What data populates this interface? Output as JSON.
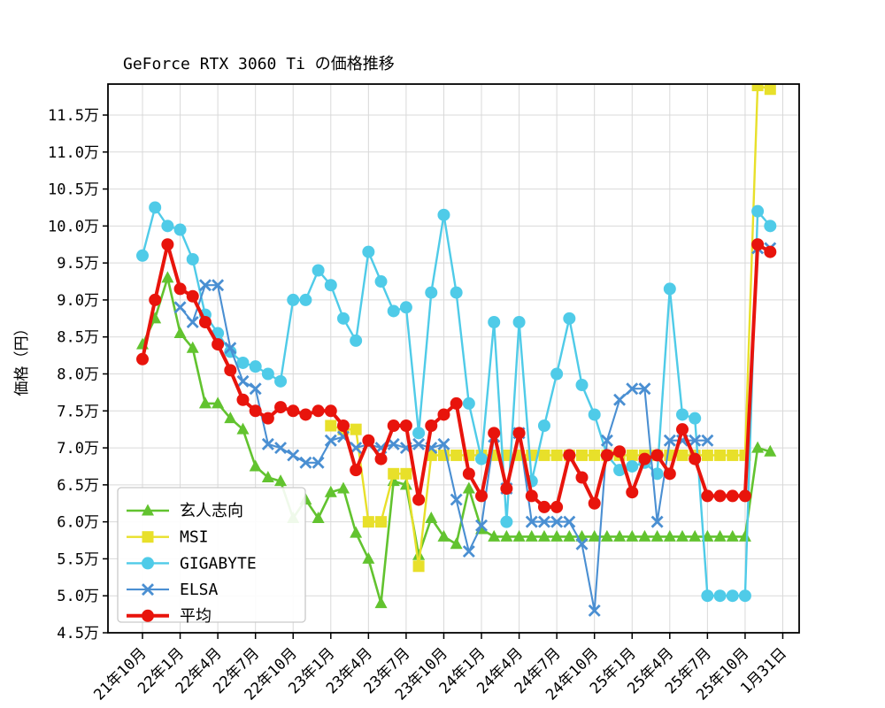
{
  "chart_data": {
    "type": "line",
    "title": "GeForce RTX 3060 Ti の価格推移",
    "ylabel": "価格（円）",
    "unit": "万円",
    "grid": true,
    "legend_position": "lower left",
    "ylim": [
      4.5,
      11.92
    ],
    "y_tick_values": [
      4.5,
      5.0,
      5.5,
      6.0,
      6.5,
      7.0,
      7.5,
      8.0,
      8.5,
      9.0,
      9.5,
      10.0,
      10.5,
      11.0,
      11.5
    ],
    "y_tick_labels": [
      "4.5万",
      "5.0万",
      "5.5万",
      "6.0万",
      "6.5万",
      "7.0万",
      "7.5万",
      "8.0万",
      "8.5万",
      "9.0万",
      "9.5万",
      "10.0万",
      "10.5万",
      "11.0万",
      "11.5万"
    ],
    "x_tick_labels": [
      "21年10月",
      "22年1月",
      "22年4月",
      "22年7月",
      "22年10月",
      "23年1月",
      "23年4月",
      "23年7月",
      "23年10月",
      "24年1月",
      "24年4月",
      "24年7月",
      "24年10月",
      "25年1月",
      "25年4月",
      "25年7月",
      "25年10月",
      "1月31日"
    ],
    "x_tick_month_index": [
      0,
      3,
      6,
      9,
      12,
      15,
      18,
      21,
      24,
      27,
      30,
      33,
      36,
      39,
      42,
      45,
      48,
      51
    ],
    "n_points": 52,
    "series": [
      {
        "name": "玄人志向",
        "id": "kuroutoshikou",
        "color": "#62c32f",
        "marker": "triangle",
        "line_width": 2.6,
        "values": [
          8.4,
          8.75,
          9.3,
          8.55,
          8.35,
          7.6,
          7.6,
          7.4,
          7.25,
          6.75,
          6.6,
          6.55,
          6.05,
          6.3,
          6.05,
          6.4,
          6.45,
          5.85,
          5.5,
          4.9,
          6.55,
          6.5,
          5.55,
          6.05,
          5.8,
          5.7,
          6.45,
          5.9,
          5.8,
          5.8,
          5.8,
          5.8,
          5.8,
          5.8,
          5.8,
          5.8,
          5.8,
          5.8,
          5.8,
          5.8,
          5.8,
          5.8,
          5.8,
          5.8,
          5.8,
          5.8,
          5.8,
          5.8,
          5.8,
          7.0,
          6.95,
          null
        ]
      },
      {
        "name": "MSI",
        "id": "msi",
        "color": "#e8e02a",
        "marker": "square",
        "line_width": 2.4,
        "values": [
          null,
          null,
          null,
          null,
          null,
          null,
          null,
          null,
          null,
          null,
          null,
          null,
          null,
          null,
          null,
          7.3,
          7.25,
          7.25,
          6.0,
          6.0,
          6.65,
          6.65,
          5.4,
          6.9,
          6.9,
          6.9,
          6.9,
          6.9,
          6.9,
          6.9,
          6.9,
          6.9,
          6.9,
          6.9,
          6.9,
          6.9,
          6.9,
          6.9,
          6.9,
          6.9,
          6.9,
          6.9,
          6.9,
          6.9,
          6.9,
          6.9,
          6.9,
          6.9,
          6.9,
          11.9,
          11.85,
          null
        ]
      },
      {
        "name": "GIGABYTE",
        "id": "gigabyte",
        "color": "#4fcbe8",
        "marker": "circle",
        "line_width": 2.4,
        "values": [
          9.6,
          10.25,
          10.0,
          9.95,
          9.55,
          8.8,
          8.55,
          8.3,
          8.15,
          8.1,
          8.0,
          7.9,
          9.0,
          9.0,
          9.4,
          9.2,
          8.75,
          8.45,
          9.65,
          9.25,
          8.85,
          8.9,
          7.2,
          9.1,
          10.15,
          9.1,
          7.6,
          6.85,
          8.7,
          6.0,
          8.7,
          6.55,
          7.3,
          8.0,
          8.75,
          7.85,
          7.45,
          6.9,
          6.7,
          6.75,
          6.8,
          6.65,
          9.15,
          7.45,
          7.4,
          5.0,
          5.0,
          5.0,
          5.0,
          10.2,
          10.0,
          null
        ]
      },
      {
        "name": "ELSA",
        "id": "elsa",
        "color": "#4a8fd2",
        "marker": "x",
        "line_width": 2.1,
        "values": [
          null,
          null,
          null,
          8.9,
          8.7,
          9.2,
          9.2,
          8.35,
          7.9,
          7.8,
          7.05,
          7.0,
          6.9,
          6.8,
          6.8,
          7.1,
          7.15,
          7.0,
          7.05,
          7.0,
          7.05,
          7.0,
          7.05,
          7.0,
          7.05,
          6.3,
          5.6,
          5.95,
          7.15,
          6.45,
          7.2,
          6.0,
          6.0,
          6.0,
          6.0,
          5.7,
          4.8,
          7.1,
          7.65,
          7.8,
          7.8,
          6.0,
          7.1,
          7.1,
          7.1,
          7.1,
          null,
          null,
          null,
          9.7,
          9.7,
          null
        ]
      },
      {
        "name": "平均",
        "id": "heikin",
        "color": "#e8140c",
        "marker": "circle",
        "line_width": 4.0,
        "values": [
          8.2,
          9.0,
          9.75,
          9.15,
          9.05,
          8.7,
          8.4,
          8.05,
          7.65,
          7.5,
          7.4,
          7.55,
          7.5,
          7.45,
          7.5,
          7.5,
          7.3,
          6.7,
          7.1,
          6.85,
          7.3,
          7.3,
          6.3,
          7.3,
          7.45,
          7.6,
          6.65,
          6.35,
          7.2,
          6.45,
          7.2,
          6.35,
          6.2,
          6.2,
          6.9,
          6.6,
          6.25,
          6.9,
          6.95,
          6.4,
          6.85,
          6.9,
          6.65,
          7.25,
          6.85,
          6.35,
          6.35,
          6.35,
          6.35,
          9.75,
          9.65,
          null
        ]
      }
    ],
    "colors": {
      "grid": "#d9d9d9",
      "axis": "#000000",
      "legend_border": "#c9c9c9",
      "background": "#ffffff"
    }
  }
}
